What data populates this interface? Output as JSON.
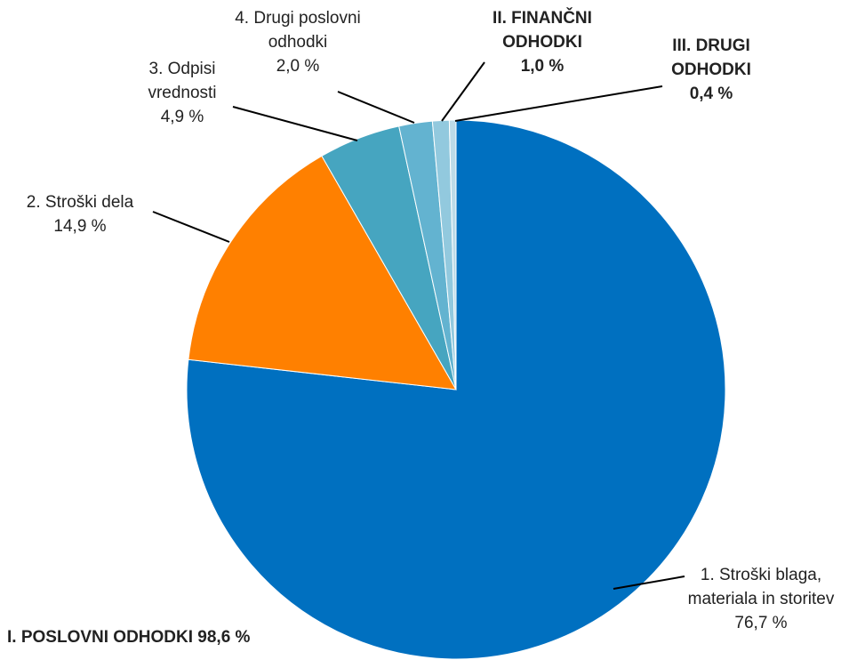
{
  "chart_data": {
    "type": "pie",
    "categories": [
      "1. Stroški blaga, materiala in storitev",
      "2. Stroški dela",
      "3. Odpisi vrednosti",
      "4. Drugi poslovni odhodki",
      "II. FINANČNI ODHODKI",
      "III. DRUGI ODHODKI"
    ],
    "values": [
      76.7,
      14.9,
      4.9,
      2.0,
      1.0,
      0.4
    ],
    "value_labels": [
      "76,7 %",
      "14,9 %",
      "4,9 %",
      "2,0 %",
      "1,0 %",
      "0,4 %"
    ],
    "colors": [
      "#0070c0",
      "#ff8000",
      "#46a5c0",
      "#63b3d0",
      "#92c9de",
      "#bcdbe8"
    ],
    "label_bold": [
      false,
      false,
      false,
      false,
      true,
      true
    ],
    "annotations": [
      "I. POSLOVNI ODHODKI 98,6 %"
    ]
  }
}
